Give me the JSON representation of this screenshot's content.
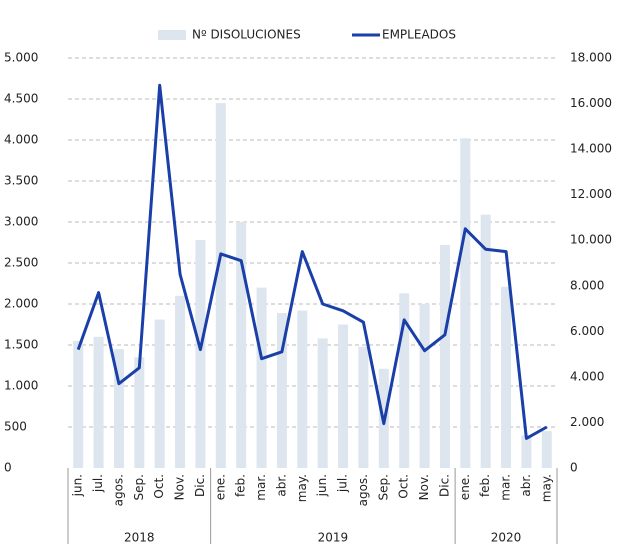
{
  "chart_data": {
    "type": "bar_line",
    "categories": [
      "jun.",
      "jul.",
      "agos.",
      "Sep.",
      "Oct.",
      "Nov.",
      "Dic.",
      "ene.",
      "feb.",
      "mar.",
      "abr.",
      "may.",
      "jun.",
      "jul.",
      "agos.",
      "Sep.",
      "Oct.",
      "Nov.",
      "Dic.",
      "ene.",
      "feb.",
      "mar.",
      "abr.",
      "may."
    ],
    "x_groups": [
      {
        "label": "2018",
        "span": 7
      },
      {
        "label": "2019",
        "span": 12
      },
      {
        "label": "2020",
        "span": 5
      }
    ],
    "series": [
      {
        "name": "Nº DISOLUCIONES",
        "type": "bar",
        "color": "#dde5ee",
        "axis": "y",
        "values": [
          1550,
          1600,
          1450,
          1350,
          1810,
          2100,
          2780,
          4450,
          3000,
          2200,
          1890,
          1920,
          1580,
          1750,
          1480,
          1210,
          2130,
          2000,
          2720,
          4020,
          3090,
          2210,
          400,
          450
        ]
      },
      {
        "name": "EMPLEADOS",
        "type": "line",
        "color": "#1a3fa8",
        "axis": "y2",
        "values": [
          5200,
          7700,
          3700,
          4400,
          16800,
          8500,
          5200,
          9400,
          9100,
          4800,
          5100,
          9500,
          7200,
          6900,
          6400,
          1950,
          6500,
          5150,
          5850,
          10500,
          9600,
          9500,
          1300,
          1800
        ]
      }
    ],
    "ylim": [
      0,
      5000
    ],
    "yticks": [
      0,
      500,
      {
        "value": 1000,
        "label": "1.000"
      },
      {
        "value": 1500,
        "label": "1.500"
      },
      {
        "value": 2000,
        "label": "2.000"
      },
      {
        "value": 2500,
        "label": "2.500"
      },
      {
        "value": 3000,
        "label": "3.000"
      },
      {
        "value": 3500,
        "label": "3.500"
      },
      {
        "value": 4000,
        "label": "4.000"
      },
      {
        "value": 4500,
        "label": "4.500"
      },
      {
        "value": 5000,
        "label": "5.000"
      }
    ],
    "y2lim": [
      0,
      18000
    ],
    "y2ticks": [
      0,
      {
        "value": 2000,
        "label": "2.000"
      },
      {
        "value": 4000,
        "label": "4.000"
      },
      {
        "value": 6000,
        "label": "6.000"
      },
      {
        "value": 8000,
        "label": "8.000"
      },
      {
        "value": 10000,
        "label": "10.000"
      },
      {
        "value": 12000,
        "label": "12.000"
      },
      {
        "value": 14000,
        "label": "14.000"
      },
      {
        "value": 16000,
        "label": "16.000"
      },
      {
        "value": 18000,
        "label": "18.000"
      }
    ],
    "grid": true,
    "legend": "top"
  }
}
